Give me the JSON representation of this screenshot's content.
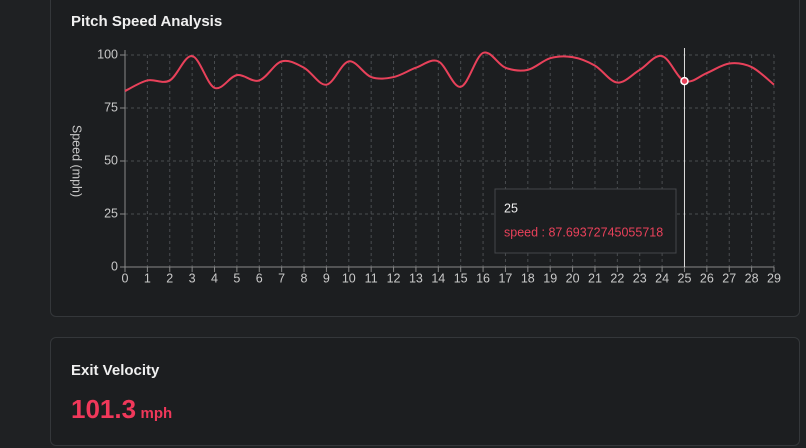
{
  "chart_data": {
    "type": "line",
    "title": "Pitch Speed Analysis",
    "y_label": "Speed (mph)",
    "x": [
      0,
      1,
      2,
      3,
      4,
      5,
      6,
      7,
      8,
      9,
      10,
      11,
      12,
      13,
      14,
      15,
      16,
      17,
      18,
      19,
      20,
      21,
      22,
      23,
      24,
      25,
      26,
      27,
      28,
      29
    ],
    "series": [
      {
        "name": "speed",
        "color": "#e8415a",
        "values": [
          83,
          88,
          88,
          99.5,
          84.5,
          90.5,
          88,
          97,
          94,
          86,
          97,
          89.6,
          89.6,
          94,
          97,
          85,
          101,
          94,
          93,
          98.5,
          99,
          95,
          87,
          93,
          99.5,
          87.69372745055718,
          91.5,
          96,
          94.3,
          86
        ]
      }
    ],
    "xlim": [
      0,
      29
    ],
    "xticks": [
      0,
      1,
      2,
      3,
      4,
      5,
      6,
      7,
      8,
      9,
      10,
      11,
      12,
      13,
      14,
      15,
      16,
      17,
      18,
      19,
      20,
      21,
      22,
      23,
      24,
      25,
      26,
      27,
      28,
      29
    ],
    "ylim": [
      0,
      100
    ],
    "yticks": [
      0,
      25,
      50,
      75,
      100
    ],
    "grid": true,
    "tooltip": {
      "x": 25,
      "text": "speed : 87.69372745055718"
    }
  },
  "exit_velocity": {
    "title": "Exit Velocity",
    "value": "101.3",
    "unit": "mph"
  }
}
